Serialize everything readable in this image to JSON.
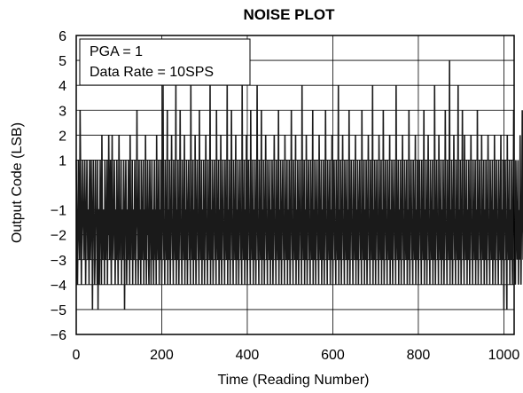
{
  "chart_data": {
    "type": "line",
    "title": "NOISE PLOT",
    "xlabel": "Time (Reading Number)",
    "ylabel": "Output Code (LSB)",
    "xlim": [
      0,
      1024
    ],
    "ylim": [
      -6,
      6
    ],
    "xticks": [
      "0",
      "200",
      "400",
      "600",
      "800",
      "1000"
    ],
    "yticks": [
      "6",
      "5",
      "4",
      "3",
      "2",
      "1",
      "−1",
      "−2",
      "−3",
      "−4",
      "−5",
      "−6"
    ],
    "grid": true,
    "annotations": [
      "PGA = 1",
      "Data Rate = 10SPS"
    ],
    "series": [
      {
        "color": "#1a1a1a",
        "x_start": 0,
        "x_step": 1,
        "values": [
          1,
          -1,
          -3,
          -4,
          -2,
          1,
          -1,
          -2,
          -3,
          3,
          1,
          -1,
          -4,
          -2,
          -1,
          1,
          -1,
          -2,
          -3,
          -1,
          1,
          -1,
          -4,
          -2,
          -1,
          1,
          -1,
          -3,
          -2,
          -1,
          -4,
          1,
          -1,
          -3,
          -2,
          1,
          -1,
          -2,
          -5,
          -1,
          1,
          -1,
          -2,
          -4,
          -3,
          1,
          -1,
          -1,
          -2,
          -4,
          1,
          -5,
          -1,
          -1,
          -4,
          -2,
          1,
          -1,
          -2,
          -4,
          2,
          -1,
          -3,
          -1,
          -2,
          -1,
          -4,
          1,
          -1,
          -3,
          -2,
          -1,
          1,
          -4,
          -1,
          -2,
          2,
          -1,
          -3,
          -1,
          1,
          -2,
          -4,
          -1,
          2,
          -1,
          -3,
          -2,
          -1,
          1,
          -1,
          -4,
          -2,
          -1,
          -3,
          1,
          -1,
          -2,
          -4,
          -1,
          2,
          -1,
          -3,
          -1,
          -2,
          1,
          -4,
          -1,
          -2,
          -3,
          -1,
          1,
          -1,
          -5,
          -2,
          -1,
          1,
          -1,
          -4,
          -2,
          -1,
          -3,
          1,
          -1,
          -2,
          -4,
          2,
          -1,
          -3,
          -1,
          -2,
          1,
          -4,
          -1,
          -2,
          -3,
          -1,
          1,
          -1,
          -4,
          -2,
          -1,
          3,
          -1,
          -2,
          -4,
          -1,
          1,
          -3,
          -1,
          -2,
          -4,
          1,
          -1,
          -3,
          -2,
          -1,
          1,
          -4,
          -1,
          -2,
          -3,
          2,
          -1,
          -4,
          -1,
          -2,
          1,
          -1,
          -3,
          -4,
          -2,
          1,
          -1,
          -2,
          -4,
          -1,
          1,
          -3,
          -1,
          -2,
          -4,
          -1,
          1,
          -2,
          -3,
          -1,
          -4,
          2,
          -1,
          -2,
          -3,
          -1,
          1,
          -4,
          -1,
          -2,
          -3,
          1,
          -1,
          -4,
          -2,
          -1,
          4,
          -1,
          -3,
          -2,
          -4,
          1,
          -1,
          -2,
          -3,
          -1,
          3,
          -4,
          -1,
          -2,
          -3,
          1,
          -1,
          -4,
          -2,
          -1,
          2,
          -1,
          -3,
          -2,
          -4,
          1,
          -1,
          -2,
          -3,
          -1,
          4,
          -4,
          -1,
          -2,
          -3,
          1,
          -1,
          -4,
          -2,
          -1,
          3,
          -1,
          -3,
          -2,
          -4,
          1,
          -1,
          -2,
          -3,
          -1,
          2,
          -4,
          -1,
          -2,
          -3,
          1,
          -1,
          -4,
          -2,
          -1,
          1,
          -1,
          -3,
          -2,
          -4,
          4,
          -1,
          -2,
          -3,
          -1,
          1,
          -4,
          -1,
          -2,
          -3,
          2,
          -1,
          -4,
          -2,
          -1,
          1,
          -1,
          -3,
          -2,
          -4,
          3,
          -1,
          -2,
          -3,
          -1,
          1,
          -4,
          -1,
          -2,
          -3,
          1,
          -1,
          -4,
          -2,
          -1,
          2,
          -1,
          -3,
          -2,
          -4,
          1,
          -1,
          -2,
          -3,
          -1,
          4,
          -4,
          -1,
          -2,
          -3,
          1,
          -1,
          -4,
          -2,
          -1,
          1,
          -1,
          -3,
          -2,
          -4,
          3,
          -1,
          -2,
          -3,
          -1,
          1,
          -4,
          -1,
          -2,
          -3,
          2,
          -1,
          -4,
          -2,
          -1,
          1,
          -1,
          -3,
          -2,
          -4,
          1,
          -1,
          -2,
          -3,
          -1,
          4,
          -4,
          -1,
          -2,
          -3,
          1,
          -1,
          -4,
          -2,
          -1,
          3,
          -1,
          -3,
          -2,
          -4,
          1,
          -1,
          -2,
          -3,
          -1,
          2,
          -4,
          -1,
          -2,
          -3,
          1,
          -1,
          -4,
          -2,
          -1,
          1,
          -1,
          -3,
          -2,
          -4,
          4,
          -1,
          -2,
          -3,
          -1,
          1,
          -4,
          -1,
          -2,
          -3,
          2,
          -1,
          -4,
          -2,
          -1,
          1,
          -1,
          -3,
          -2,
          -4,
          3,
          -1,
          -2,
          -3,
          -1,
          1,
          -4,
          -1,
          -2,
          -3,
          1,
          -1,
          -4,
          -2,
          -1,
          4,
          -1,
          -3,
          -2,
          -4,
          1,
          -1,
          -2,
          -3,
          -1,
          3,
          -4,
          -1,
          -2,
          -3,
          1,
          -1,
          -4,
          -2,
          -1,
          2,
          -1,
          -3,
          -2,
          -4,
          1,
          -1,
          -2,
          -3,
          -1,
          1,
          -4,
          -1,
          -2,
          -3,
          1,
          -1,
          -4,
          -2,
          -1,
          2,
          -1,
          -3,
          -2,
          -4,
          1,
          -1,
          -2,
          -3,
          -1,
          3,
          -4,
          -1,
          -2,
          -3,
          1,
          -1,
          -4,
          -2,
          -1,
          1,
          -1,
          -3,
          -2,
          -4,
          2,
          -1,
          -2,
          -3,
          -1,
          1,
          -4,
          -1,
          -2,
          -3,
          1,
          -1,
          -4,
          -2,
          -1,
          3,
          -1,
          -3,
          -2,
          -4,
          1,
          -1,
          -2,
          -3,
          -1,
          2,
          -4,
          -1,
          -2,
          -3,
          1,
          -1,
          -4,
          -2,
          -1,
          1,
          -1,
          -3,
          -2,
          -4,
          4,
          -1,
          -2,
          -3,
          -1,
          1,
          -4,
          -1,
          -2,
          -3,
          2,
          -1,
          -4,
          -2,
          -1,
          1,
          -1,
          -3,
          -2,
          -4,
          1,
          -1,
          -2,
          -3,
          -1,
          3,
          -4,
          -1,
          -2,
          -3,
          1,
          -1,
          -4,
          -2,
          -1,
          1,
          -1,
          -3,
          -2,
          -4,
          2,
          -1,
          -2,
          -3,
          -1,
          1,
          -4,
          -1,
          -2,
          -3,
          1,
          -1,
          -4,
          -2,
          -1,
          3,
          -1,
          -3,
          -2,
          -4,
          1,
          -1,
          -2,
          -3,
          -1,
          1,
          -4,
          -1,
          -2,
          -3,
          2,
          -1,
          -4,
          -2,
          -1,
          1,
          -1,
          -3,
          -2,
          -4,
          1,
          -1,
          -2,
          -3,
          -1,
          4,
          -4,
          -1,
          -2,
          -3,
          1,
          -1,
          -4,
          -2,
          -1,
          2,
          -1,
          -3,
          -2,
          -4,
          1,
          -1,
          -2,
          -3,
          -1,
          1,
          -4,
          -1,
          -2,
          -3,
          3,
          -1,
          -4,
          -2,
          -1,
          1,
          -1,
          -3,
          -2,
          -4,
          1,
          -1,
          -2,
          -3,
          -1,
          2,
          -4,
          -1,
          -2,
          -3,
          1,
          -1,
          -4,
          -2,
          -1,
          1,
          -1,
          -3,
          -2,
          -4,
          3,
          -1,
          -2,
          -3,
          -1,
          1,
          -4,
          -1,
          -2,
          -3,
          1,
          -1,
          -4,
          -2,
          -1,
          2,
          -1,
          -3,
          -2,
          -4,
          1,
          -1,
          -2,
          -3,
          -1,
          4,
          -4,
          -1,
          -2,
          -3,
          1,
          -1,
          -4,
          -2,
          -1,
          1,
          -1,
          -3,
          -2,
          -4,
          2,
          -1,
          -2,
          -3,
          -1,
          1,
          -4,
          -1,
          -2,
          -3,
          3,
          -1,
          -4,
          -2,
          -1,
          1,
          -1,
          -3,
          -2,
          -4,
          1,
          -1,
          -2,
          -3,
          -1,
          2,
          -4,
          -1,
          -2,
          -3,
          1,
          -1,
          -4,
          -2,
          -1,
          1,
          -1,
          -3,
          -2,
          -4,
          4,
          -1,
          -2,
          -3,
          -1,
          1,
          -4,
          -1,
          -2,
          -3,
          1,
          -1,
          -4,
          -2,
          -1,
          2,
          -1,
          -3,
          -2,
          -4,
          1,
          -1,
          -2,
          -3,
          -1,
          1,
          -4,
          -1,
          -2,
          -3,
          3,
          -1,
          -4,
          -2,
          -1,
          1,
          -1,
          -3,
          -2,
          -4,
          1,
          -1,
          -2,
          -3,
          -1,
          2,
          -4,
          -1,
          -2,
          -3,
          1,
          -1,
          -4,
          -2,
          -1,
          1,
          -1,
          -3,
          -2,
          -4,
          1,
          -1,
          -2,
          -3,
          -1,
          3,
          -4,
          -1,
          -2,
          -3,
          1,
          -1,
          -4,
          -2,
          -1,
          2,
          -1,
          -3,
          -2,
          -4,
          1,
          -1,
          -2,
          -3,
          -1,
          1,
          -4,
          -1,
          -2,
          -3,
          4,
          -1,
          -4,
          -2,
          -1,
          1,
          -1,
          -3,
          -2,
          -4,
          2,
          -1,
          -2,
          -3,
          -1,
          1,
          -4,
          -1,
          -2,
          -3,
          1,
          -1,
          -4,
          -2,
          -1,
          3,
          -1,
          -3,
          -2,
          -4,
          1,
          -1,
          -2,
          -3,
          -1,
          5,
          -4,
          -1,
          -2,
          -3,
          1,
          -1,
          -4,
          -2,
          -1,
          2,
          -1,
          -3,
          -2,
          -4,
          1,
          -1,
          -2,
          -3,
          -1,
          4,
          -4,
          -1,
          -2,
          -3,
          1,
          -1,
          -4,
          -2,
          -1,
          3,
          -1,
          -3,
          -2,
          -4,
          2,
          -1,
          -2,
          -3,
          -1,
          1,
          -4,
          -1,
          -2,
          -3,
          1,
          -1,
          -4,
          -2,
          -1,
          2,
          -1,
          -3,
          -2,
          -4,
          1,
          -1,
          -2,
          -3,
          -1,
          1,
          -4,
          -1,
          -2,
          -3,
          3,
          -1,
          -4,
          -2,
          -1,
          1,
          -1,
          -3,
          -2,
          -4,
          2,
          -1,
          -2,
          -3,
          -1,
          1,
          -4,
          -1,
          -2,
          -3,
          1,
          -1,
          -4,
          -2,
          -1,
          2,
          -1,
          -3,
          -2,
          -4,
          1,
          -1,
          -2,
          -3,
          -1,
          1,
          -4,
          -1,
          -2,
          -3,
          2,
          -1,
          -4,
          -2,
          -1,
          1,
          -1,
          -3,
          -2,
          -4,
          1,
          -1,
          -2,
          -3,
          -1,
          2,
          -4,
          -1,
          -2,
          -3,
          1,
          -1,
          -5,
          -2,
          -1,
          1,
          -1,
          -3,
          -2,
          -5,
          2,
          -1,
          -2,
          -3,
          -1,
          1,
          -4,
          -1,
          -2,
          -3,
          1,
          -1,
          -4,
          -2,
          -1,
          3,
          -1,
          -3,
          -2,
          -4,
          1,
          -1,
          -2,
          -3,
          -1,
          1,
          -4,
          -1,
          -2,
          -3,
          2,
          -1,
          -4,
          -2,
          -1,
          3,
          -1,
          -3,
          -2,
          -4,
          1,
          -1,
          -2,
          -3,
          -1,
          3,
          -4,
          -1,
          -2,
          -3,
          1,
          -1,
          -4,
          -2,
          -1,
          2,
          -1,
          -3
        ]
      }
    ]
  }
}
